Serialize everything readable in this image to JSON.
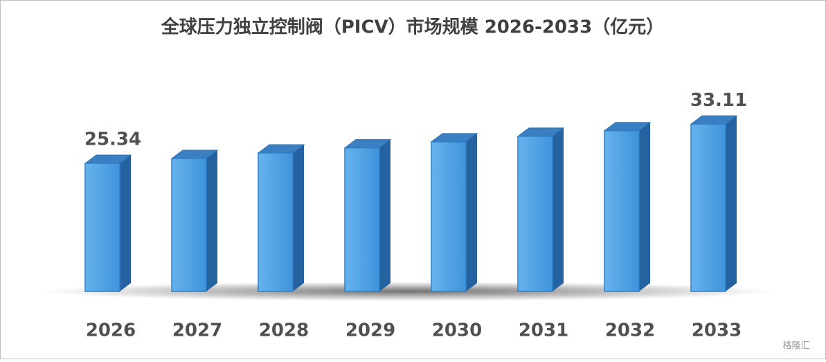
{
  "chart_data": {
    "type": "bar3d",
    "title": "全球压力独立控制阀（PICV）市场规模 2026-2033（亿元）",
    "categories": [
      "2026",
      "2027",
      "2028",
      "2029",
      "2030",
      "2031",
      "2032",
      "2033"
    ],
    "values": [
      25.34,
      26.3,
      27.4,
      28.4,
      29.6,
      30.7,
      31.8,
      33.11
    ],
    "value_labels": [
      "25.34",
      null,
      null,
      null,
      null,
      null,
      null,
      "33.11"
    ],
    "color": "#4a9ee0",
    "watermark": "格隆汇"
  }
}
